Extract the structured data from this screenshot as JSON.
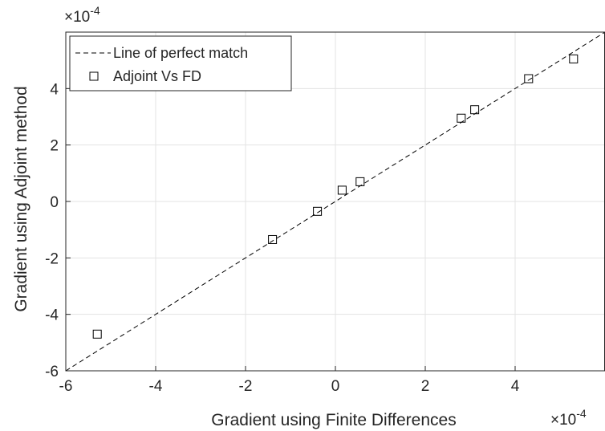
{
  "chart_data": {
    "type": "scatter",
    "xlabel": "Gradient using Finite Differences",
    "ylabel": "Gradient using Adjoint method",
    "x_exponent_base": "×10",
    "x_exponent_power": "-4",
    "y_exponent_base": "×10",
    "y_exponent_power": "-4",
    "xlim": [
      -6,
      6
    ],
    "ylim": [
      -6,
      6
    ],
    "xticks": [
      -6,
      -4,
      -2,
      0,
      2,
      4
    ],
    "yticks": [
      -6,
      -4,
      -2,
      0,
      2,
      4
    ],
    "grid": true,
    "legend_position": "top-left",
    "series": [
      {
        "name": "Line of perfect match",
        "kind": "dashed-line",
        "color": "#000000",
        "x": [
          -6,
          6
        ],
        "y": [
          -6,
          6
        ]
      },
      {
        "name": "Adjoint Vs FD",
        "kind": "square-markers",
        "color": "#000000",
        "x": [
          -5.3,
          -1.4,
          -0.4,
          0.15,
          0.55,
          2.8,
          3.1,
          4.3,
          5.3
        ],
        "y": [
          -4.7,
          -1.35,
          -0.35,
          0.4,
          0.7,
          2.95,
          3.25,
          4.35,
          5.05
        ]
      }
    ]
  }
}
